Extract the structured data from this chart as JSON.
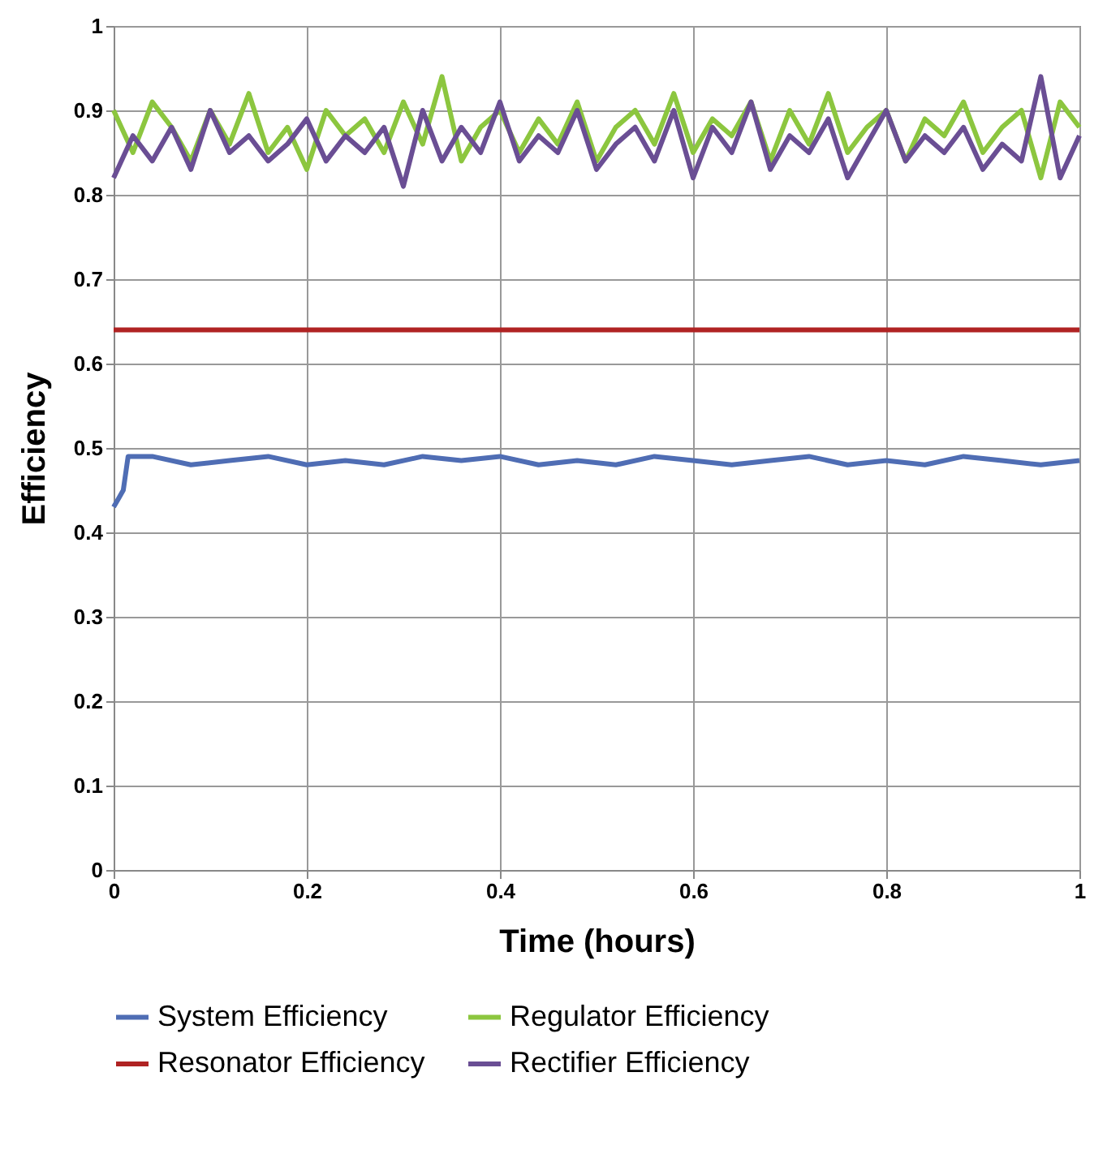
{
  "chart_data": {
    "type": "line",
    "xlabel": "Time (hours)",
    "ylabel": "Efficiency",
    "xlim": [
      0,
      1
    ],
    "xticks": [
      0,
      0.2,
      0.4,
      0.6,
      0.8,
      1
    ],
    "ylim": [
      0,
      1
    ],
    "yticks": [
      0,
      0.1,
      0.2,
      0.3,
      0.4,
      0.5,
      0.6,
      0.7,
      0.8,
      0.9,
      1
    ],
    "grid": true,
    "legend": "bottom",
    "line_style": "solid",
    "marker": "none",
    "series": [
      {
        "name": "System Efficiency",
        "color": "#4f6db4",
        "x": [
          0,
          0.005,
          0.01,
          0.015,
          0.04,
          0.08,
          0.12,
          0.16,
          0.2,
          0.24,
          0.28,
          0.32,
          0.36,
          0.4,
          0.44,
          0.48,
          0.52,
          0.56,
          0.6,
          0.64,
          0.68,
          0.72,
          0.76,
          0.8,
          0.84,
          0.88,
          0.92,
          0.96,
          1
        ],
        "values": [
          0.43,
          0.44,
          0.45,
          0.49,
          0.49,
          0.48,
          0.485,
          0.49,
          0.48,
          0.485,
          0.48,
          0.49,
          0.485,
          0.49,
          0.48,
          0.485,
          0.48,
          0.49,
          0.485,
          0.48,
          0.485,
          0.49,
          0.48,
          0.485,
          0.48,
          0.49,
          0.485,
          0.48,
          0.485
        ]
      },
      {
        "name": "Regulator Efficiency",
        "color": "#8cc63f",
        "x": [
          0,
          0.02,
          0.04,
          0.06,
          0.08,
          0.1,
          0.12,
          0.14,
          0.16,
          0.18,
          0.2,
          0.22,
          0.24,
          0.26,
          0.28,
          0.3,
          0.32,
          0.34,
          0.36,
          0.38,
          0.4,
          0.42,
          0.44,
          0.46,
          0.48,
          0.5,
          0.52,
          0.54,
          0.56,
          0.58,
          0.6,
          0.62,
          0.64,
          0.66,
          0.68,
          0.7,
          0.72,
          0.74,
          0.76,
          0.78,
          0.8,
          0.82,
          0.84,
          0.86,
          0.88,
          0.9,
          0.92,
          0.94,
          0.96,
          0.98,
          1
        ],
        "values": [
          0.9,
          0.85,
          0.91,
          0.88,
          0.84,
          0.9,
          0.86,
          0.92,
          0.85,
          0.88,
          0.83,
          0.9,
          0.87,
          0.89,
          0.85,
          0.91,
          0.86,
          0.94,
          0.84,
          0.88,
          0.9,
          0.85,
          0.89,
          0.86,
          0.91,
          0.84,
          0.88,
          0.9,
          0.86,
          0.92,
          0.85,
          0.89,
          0.87,
          0.91,
          0.84,
          0.9,
          0.86,
          0.92,
          0.85,
          0.88,
          0.9,
          0.84,
          0.89,
          0.87,
          0.91,
          0.85,
          0.88,
          0.9,
          0.82,
          0.91,
          0.88
        ]
      },
      {
        "name": "Resonator Efficiency",
        "color": "#b02323",
        "x": [
          0,
          1
        ],
        "values": [
          0.64,
          0.64
        ]
      },
      {
        "name": "Rectifier Efficiency",
        "color": "#6a4e94",
        "x": [
          0,
          0.02,
          0.04,
          0.06,
          0.08,
          0.1,
          0.12,
          0.14,
          0.16,
          0.18,
          0.2,
          0.22,
          0.24,
          0.26,
          0.28,
          0.3,
          0.32,
          0.34,
          0.36,
          0.38,
          0.4,
          0.42,
          0.44,
          0.46,
          0.48,
          0.5,
          0.52,
          0.54,
          0.56,
          0.58,
          0.6,
          0.62,
          0.64,
          0.66,
          0.68,
          0.7,
          0.72,
          0.74,
          0.76,
          0.78,
          0.8,
          0.82,
          0.84,
          0.86,
          0.88,
          0.9,
          0.92,
          0.94,
          0.96,
          0.98,
          1
        ],
        "values": [
          0.82,
          0.87,
          0.84,
          0.88,
          0.83,
          0.9,
          0.85,
          0.87,
          0.84,
          0.86,
          0.89,
          0.84,
          0.87,
          0.85,
          0.88,
          0.81,
          0.9,
          0.84,
          0.88,
          0.85,
          0.91,
          0.84,
          0.87,
          0.85,
          0.9,
          0.83,
          0.86,
          0.88,
          0.84,
          0.9,
          0.82,
          0.88,
          0.85,
          0.91,
          0.83,
          0.87,
          0.85,
          0.89,
          0.82,
          0.86,
          0.9,
          0.84,
          0.87,
          0.85,
          0.88,
          0.83,
          0.86,
          0.84,
          0.94,
          0.82,
          0.87
        ]
      }
    ]
  }
}
